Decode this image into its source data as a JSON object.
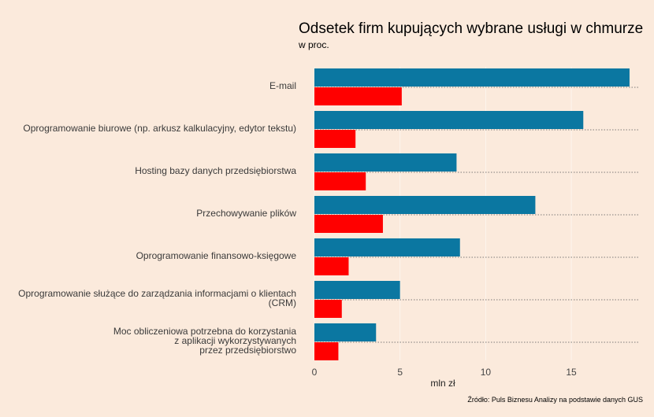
{
  "header": {
    "title": "Odsetek firm kupujących wybrane usługi w chmurze",
    "subtitle": "w proc."
  },
  "footer": {
    "source": "Źródło: Puls Biznesu Analizy na podstawie danych GUS"
  },
  "colors": {
    "background": "#fbeadc",
    "series_1": "#0b77a1",
    "series_2": "#ff0000"
  },
  "chart_data": {
    "type": "bar",
    "orientation": "horizontal",
    "title": "Odsetek firm kupujących wybrane usługi w chmurze",
    "subtitle": "w proc.",
    "xlabel": "mln zł",
    "ylabel": "",
    "xlim": [
      0,
      19
    ],
    "xticks": [
      0,
      5,
      10,
      15
    ],
    "grid": "horizontal dotted",
    "categories": [
      "E-mail",
      "Oprogramowanie biurowe (np. arkusz kalkulacyjny, edytor tekstu)",
      "Hosting bazy danych przedsiębiorstwa",
      "Przechowywanie plików",
      "Oprogramowanie finansowo-księgowe",
      "Oprogramowanie służące do zarządzania informacjami o klientach (CRM)",
      "Moc obliczeniowa potrzebna do korzystania\nz aplikacji wykorzystywanych\nprzez przedsiębiorstwo"
    ],
    "series": [
      {
        "values": [
          18.4,
          15.7,
          8.3,
          12.9,
          8.5,
          5.0,
          3.6
        ],
        "color": "#0b77a1"
      },
      {
        "values": [
          5.1,
          2.4,
          3.0,
          4.0,
          2.0,
          1.6,
          1.4
        ],
        "color": "#ff0000"
      }
    ]
  }
}
